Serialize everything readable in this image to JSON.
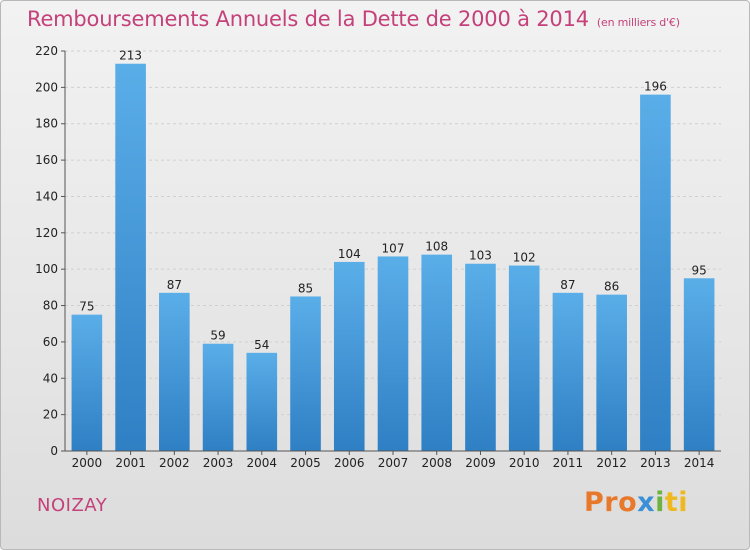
{
  "header": {
    "title": "Remboursements Annuels de la Dette de 2000 à 2014",
    "unit": "(en milliers d'€)"
  },
  "footer": {
    "town": "NOIZAY",
    "logo": [
      "Pro",
      "x",
      "i",
      "ti"
    ]
  },
  "colors": {
    "title": "#c4417a",
    "bar_top": "#5aaee8",
    "bar_bottom": "#2f7fc4"
  },
  "chart_data": {
    "type": "bar",
    "title": "Remboursements Annuels de la Dette de 2000 à 2014",
    "xlabel": "",
    "ylabel": "",
    "categories": [
      "2000",
      "2001",
      "2002",
      "2003",
      "2004",
      "2005",
      "2006",
      "2007",
      "2008",
      "2009",
      "2010",
      "2011",
      "2012",
      "2013",
      "2014"
    ],
    "values": [
      75,
      213,
      87,
      59,
      54,
      85,
      104,
      107,
      108,
      103,
      102,
      87,
      86,
      196,
      95
    ],
    "ylim": [
      0,
      220
    ],
    "yticks": [
      0,
      20,
      40,
      60,
      80,
      100,
      120,
      140,
      160,
      180,
      200,
      220
    ],
    "grid": true,
    "data_labels": true
  }
}
